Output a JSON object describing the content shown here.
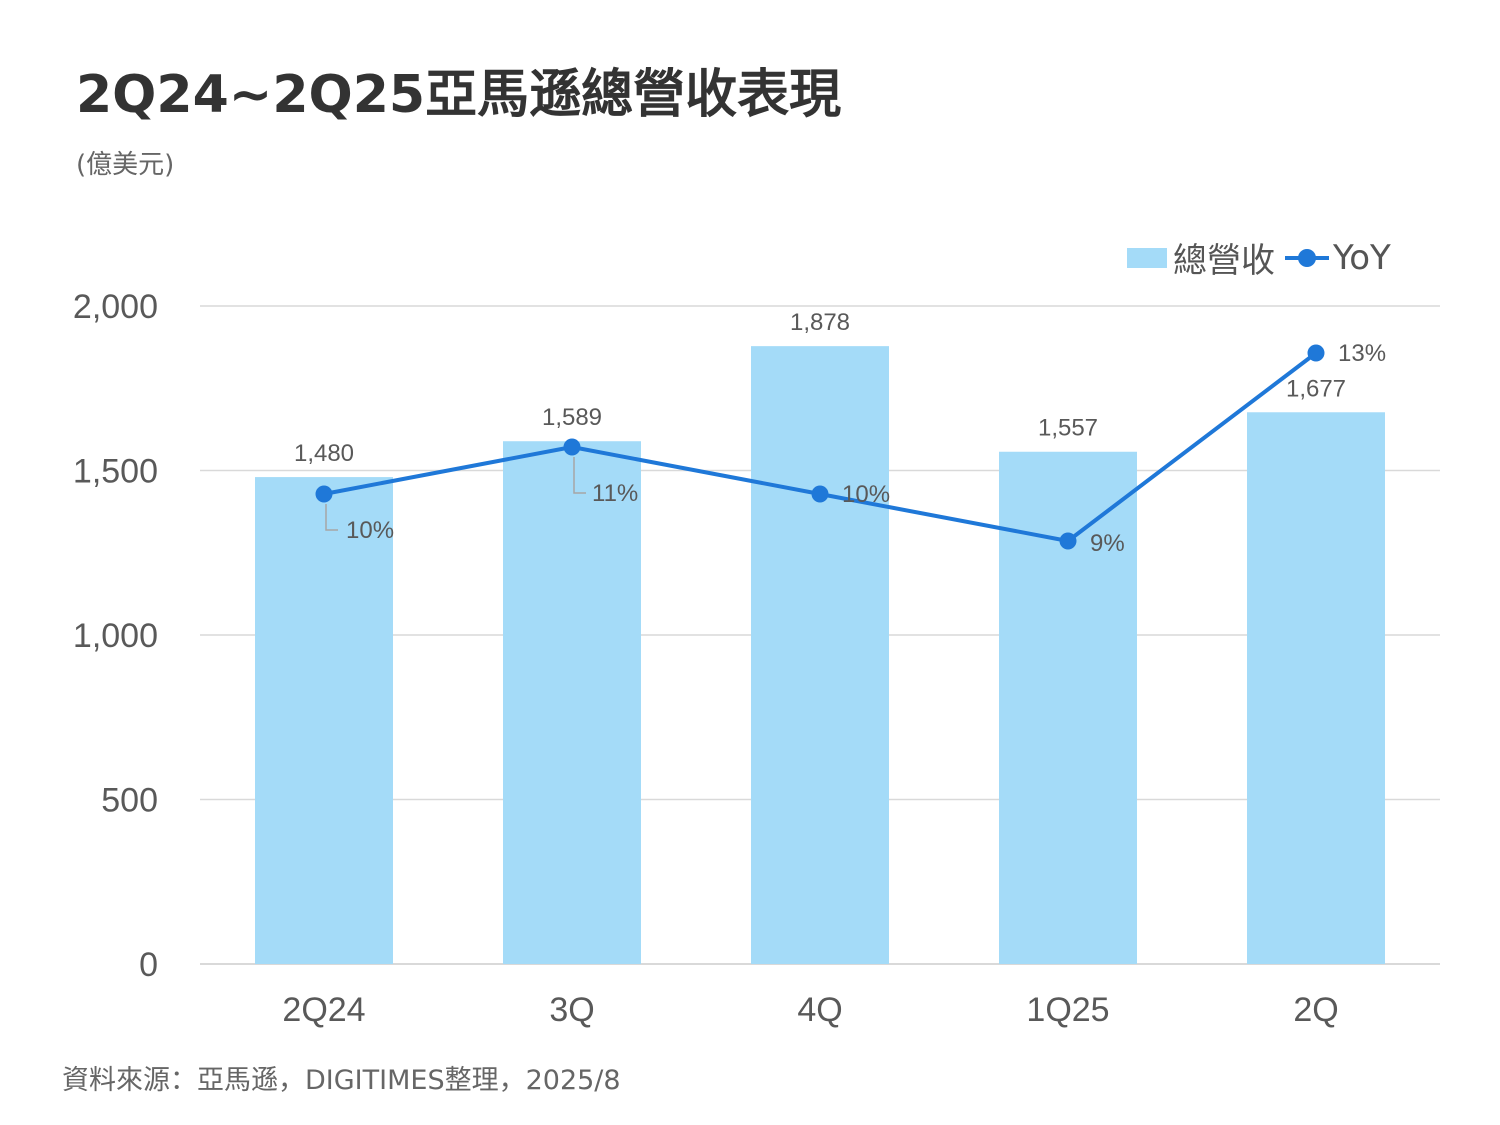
{
  "title": "2Q24~2Q25亞馬遜總營收表現",
  "unit": "(億美元)",
  "source": "資料來源：亞馬遜，DIGITIMES整理，2025/8",
  "legend": {
    "bar_label": "總營收",
    "line_label": "YoY"
  },
  "colors": {
    "bar": "#a4dbf8",
    "line": "#1f78d8",
    "grid": "#d9d9d9",
    "text": "#595959"
  },
  "chart_data": {
    "type": "bar",
    "categories": [
      "2Q24",
      "3Q",
      "4Q",
      "1Q25",
      "2Q"
    ],
    "series": [
      {
        "name": "總營收",
        "type": "bar",
        "values": [
          1480,
          1589,
          1878,
          1557,
          1677
        ],
        "labels": [
          "1,480",
          "1,589",
          "1,878",
          "1,557",
          "1,677"
        ]
      },
      {
        "name": "YoY",
        "type": "line",
        "values": [
          10,
          11,
          10,
          9,
          13
        ],
        "labels": [
          "10%",
          "11%",
          "10%",
          "9%",
          "13%"
        ]
      }
    ],
    "yticks": [
      "0",
      "500",
      "1,000",
      "1,500",
      "2,000"
    ],
    "ylim": [
      0,
      2000
    ],
    "grid": true,
    "legend_position": "top-right"
  }
}
